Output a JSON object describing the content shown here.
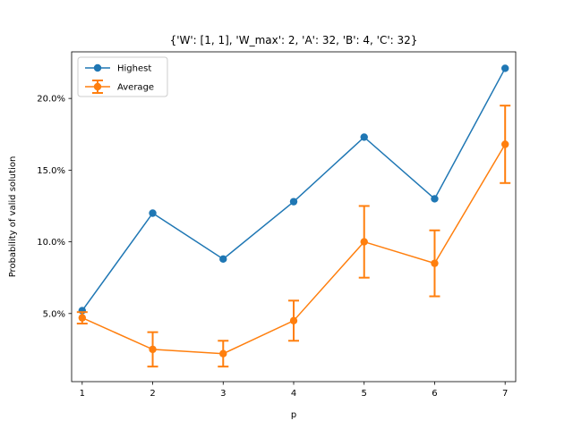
{
  "chart_data": {
    "type": "line",
    "title": "{'W': [1, 1], 'W_max': 2, 'A': 32, 'B': 4, 'C': 32}",
    "xlabel": "p",
    "ylabel": "Probability of valid solution",
    "x": [
      1,
      2,
      3,
      4,
      5,
      6,
      7
    ],
    "xticks": [
      "1",
      "2",
      "3",
      "4",
      "5",
      "6",
      "7"
    ],
    "xlim": [
      0.85,
      7.15
    ],
    "ylim": [
      0.0025,
      0.2325
    ],
    "yticks": [
      0.05,
      0.1,
      0.15,
      0.2
    ],
    "ytick_labels": [
      "5.0%",
      "10.0%",
      "15.0%",
      "20.0%"
    ],
    "grid": false,
    "legend_position": "top-left",
    "series": [
      {
        "name": "Highest",
        "color": "#1f77b4",
        "values": [
          0.052,
          0.12,
          0.088,
          0.128,
          0.173,
          0.13,
          0.221
        ],
        "marker": "circle"
      },
      {
        "name": "Average",
        "color": "#ff7f0e",
        "values": [
          0.047,
          0.025,
          0.022,
          0.045,
          0.1,
          0.085,
          0.168
        ],
        "errors": [
          0.004,
          0.012,
          0.009,
          0.014,
          0.025,
          0.023,
          0.027
        ],
        "marker": "circle",
        "errorbars": true
      }
    ]
  }
}
